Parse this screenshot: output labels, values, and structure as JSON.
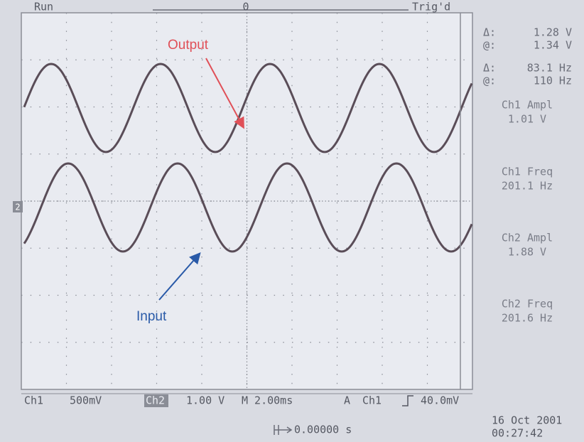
{
  "status": {
    "run": "Run",
    "trigger": "Trig'd",
    "trigger_position": "0",
    "ch2_marker": "2"
  },
  "cursors": [
    {
      "label": "Δ:",
      "value": "1.28 V"
    },
    {
      "label": "@:",
      "value": "1.34 V"
    },
    {
      "label": "Δ:",
      "value": "83.1 Hz"
    },
    {
      "label": "@:",
      "value": "110 Hz"
    }
  ],
  "measurements": [
    {
      "name": "Ch1 Ampl",
      "value": "1.01 V"
    },
    {
      "name": "Ch1 Freq",
      "value": "201.1 Hz"
    },
    {
      "name": "Ch2 Ampl",
      "value": "1.88 V"
    },
    {
      "name": "Ch2 Freq",
      "value": "201.6 Hz"
    }
  ],
  "bottom_bar": {
    "ch1": "Ch1",
    "ch1_scale": "500mV",
    "ch2": "Ch2",
    "ch2_scale": "1.00 V",
    "timebase": "M 2.00ms",
    "trigger_mode": "A",
    "trigger_source": "Ch1",
    "trigger_level": "40.0mV"
  },
  "horizontal_position": "0.00000 s",
  "date": "16 Oct 2001",
  "time": "00:27:42",
  "annotations": {
    "output": "Output",
    "input": "Input"
  }
}
